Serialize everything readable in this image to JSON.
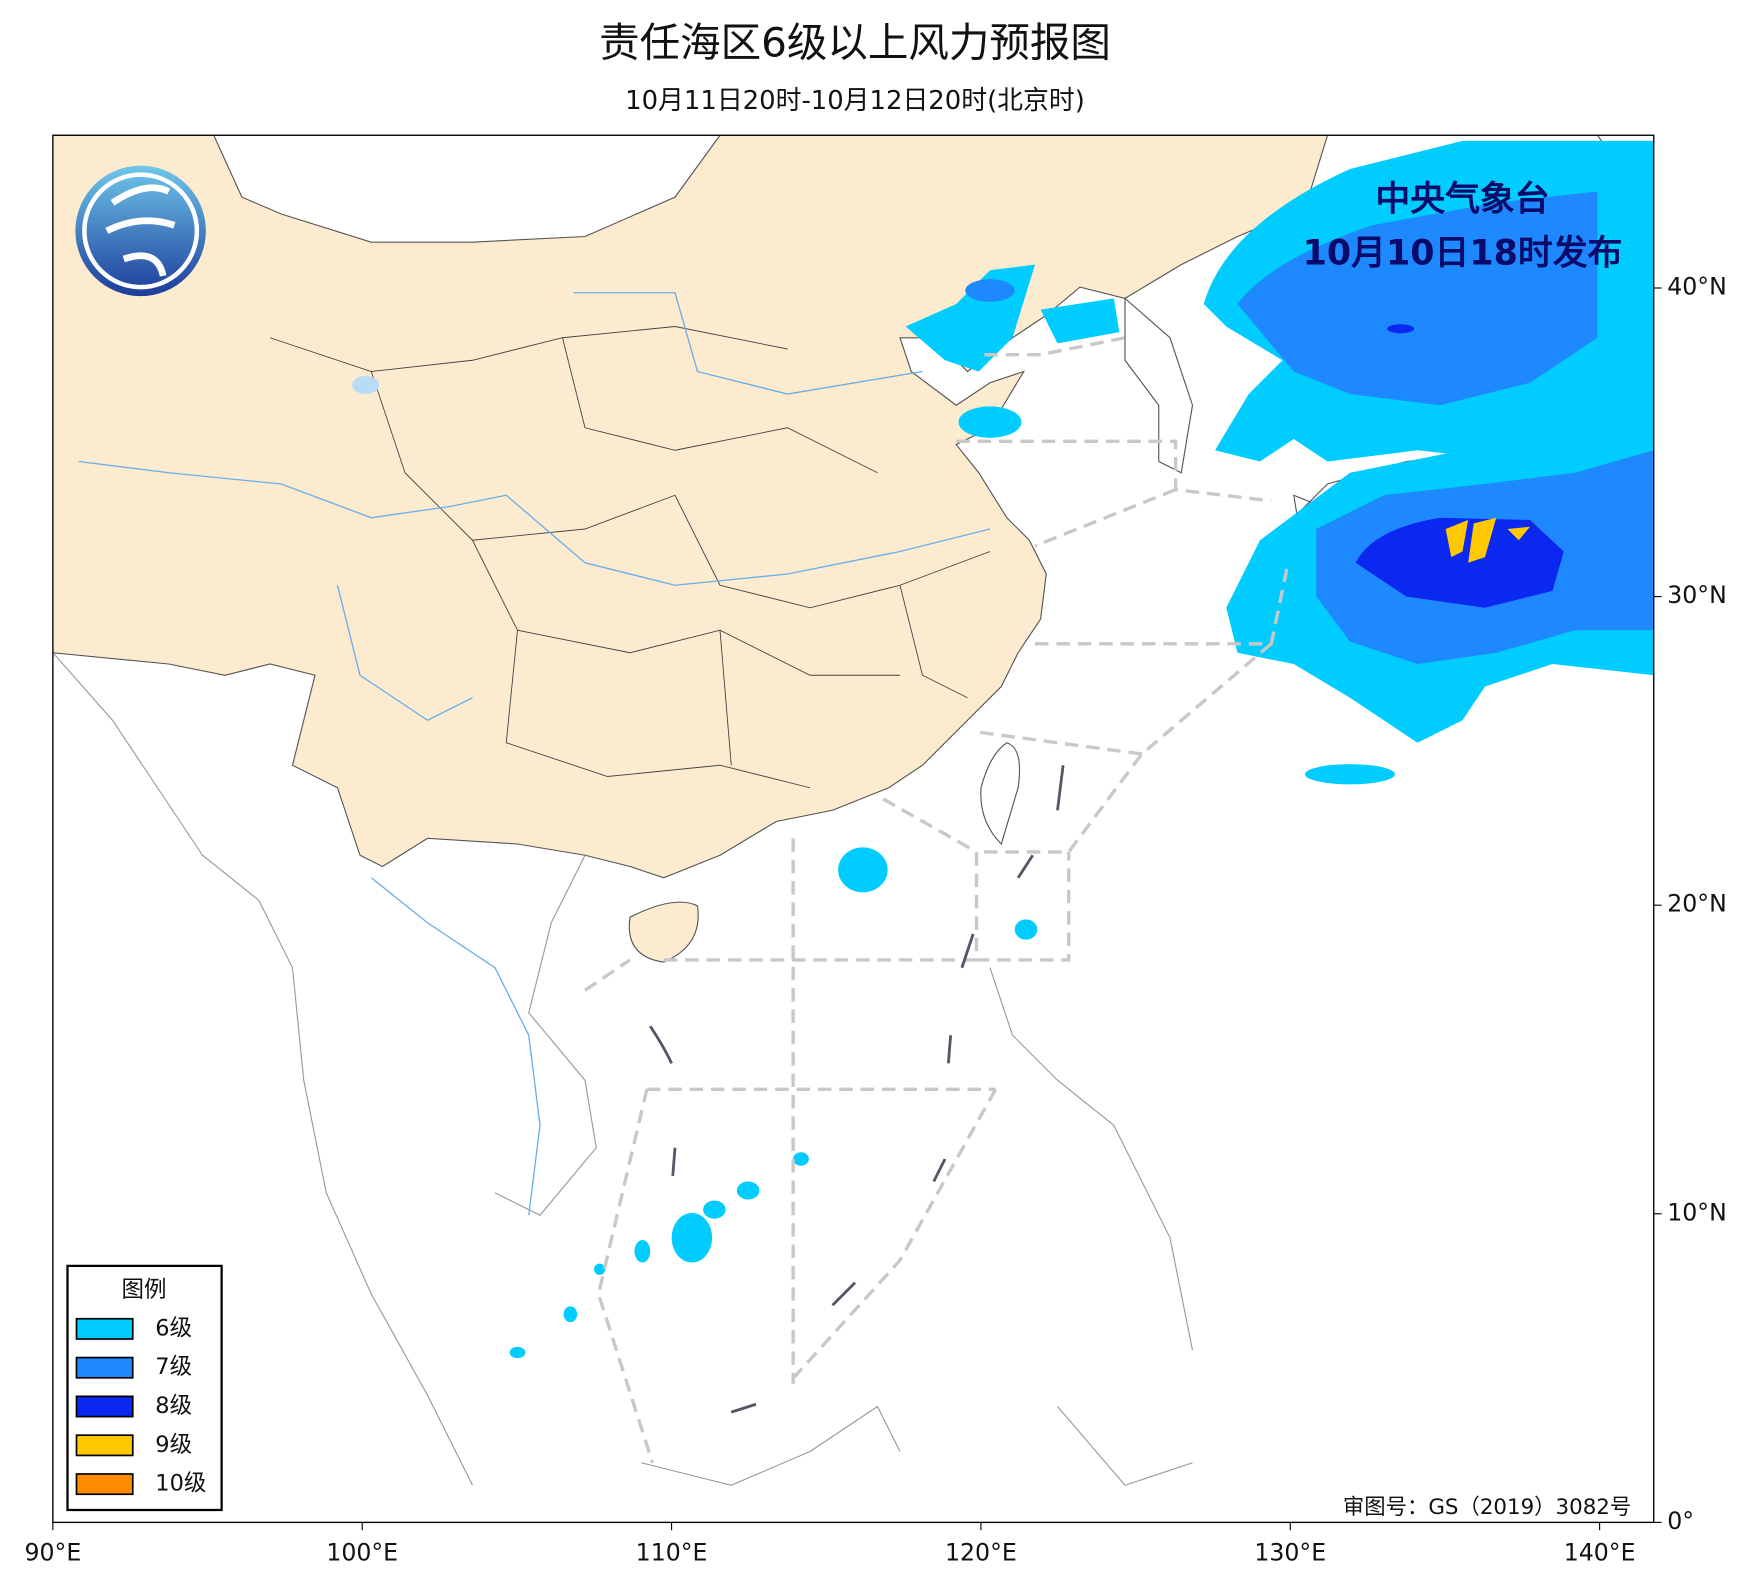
{
  "header": {
    "title": "责任海区6级以上风力预报图",
    "subtitle": "10月11日20时-10月12日20时(北京时)"
  },
  "issuer": {
    "agency": "中央气象台",
    "issued": "10月10日18时发布"
  },
  "legend": {
    "title": "图例",
    "items": [
      {
        "name": "6级",
        "color": "#00ccff"
      },
      {
        "name": "7级",
        "color": "#1e88ff"
      },
      {
        "name": "8级",
        "color": "#0a28f0"
      },
      {
        "name": "9级",
        "color": "#ffc800"
      },
      {
        "name": "10级",
        "color": "#ff8c00"
      }
    ]
  },
  "map": {
    "xlim": [
      90,
      141.75
    ],
    "ylim": [
      0,
      44.95
    ],
    "xticks": [
      {
        "value": 90,
        "label": "90°E"
      },
      {
        "value": 100,
        "label": "100°E"
      },
      {
        "value": 110,
        "label": "110°E"
      },
      {
        "value": 120,
        "label": "120°E"
      },
      {
        "value": 130,
        "label": "130°E"
      },
      {
        "value": 140,
        "label": "140°E"
      }
    ],
    "yticks": [
      {
        "value": 0,
        "label": "0°"
      },
      {
        "value": 10,
        "label": "10°N"
      },
      {
        "value": 20,
        "label": "20°N"
      },
      {
        "value": 30,
        "label": "30°N"
      },
      {
        "value": 40,
        "label": "40°N"
      }
    ]
  },
  "footer": {
    "approval": "审图号：GS（2019）3082号"
  }
}
